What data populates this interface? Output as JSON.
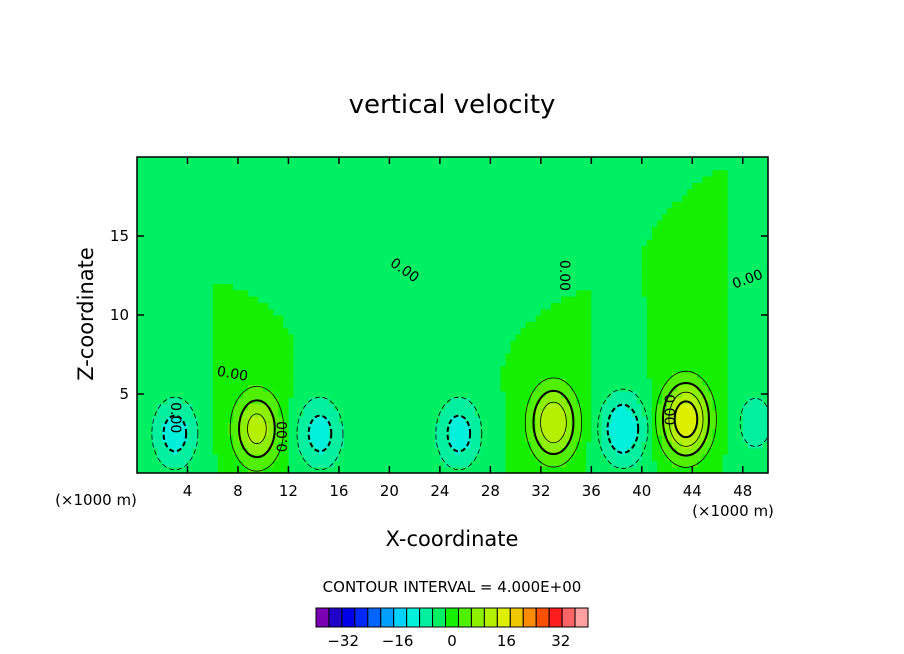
{
  "chart_data": {
    "type": "heatmap",
    "title": "vertical velocity",
    "xlabel": "X-coordinate",
    "ylabel": "Z-coordinate",
    "x_unit_left": "(×1000 m)",
    "x_unit_right": "(×1000 m)",
    "xlim": [
      0,
      50
    ],
    "ylim": [
      0,
      20
    ],
    "x_ticks": [
      4,
      8,
      12,
      16,
      20,
      24,
      28,
      32,
      36,
      40,
      44,
      48
    ],
    "y_ticks": [
      5,
      10,
      15
    ],
    "contour_interval_text": "CONTOUR INTERVAL = 4.000E+00",
    "contour_labels": [
      "0.00",
      "0.00",
      "0.00",
      "0.00",
      "0.00",
      "0.00",
      "0.00"
    ],
    "colorbar": {
      "levels": [
        -40,
        -36,
        -32,
        -28,
        -24,
        -20,
        -16,
        -12,
        -8,
        -4,
        0,
        4,
        8,
        12,
        16,
        20,
        24,
        28,
        32,
        36,
        40
      ],
      "colors": [
        "#7a00b4",
        "#1e00c8",
        "#0000e6",
        "#0028ff",
        "#0064ff",
        "#00a0ff",
        "#00d2ff",
        "#00f0dc",
        "#00f0a0",
        "#00f064",
        "#14f000",
        "#50f000",
        "#8cf000",
        "#b4f000",
        "#dcf000",
        "#f0c800",
        "#ff8c00",
        "#ff5000",
        "#ff1e1e",
        "#ff6464",
        "#ffa0a0"
      ],
      "tick_values": [
        -32,
        -16,
        0,
        16,
        32
      ],
      "tick_labels": [
        "−32",
        "−16",
        "0",
        "16",
        "32"
      ]
    },
    "extrema": [
      {
        "x": 3.0,
        "z": 2.5,
        "value": -10
      },
      {
        "x": 9.5,
        "z": 2.8,
        "value": 14
      },
      {
        "x": 14.5,
        "z": 2.5,
        "value": -10
      },
      {
        "x": 25.5,
        "z": 2.5,
        "value": -10
      },
      {
        "x": 33.0,
        "z": 3.2,
        "value": 16
      },
      {
        "x": 38.5,
        "z": 2.8,
        "value": -12
      },
      {
        "x": 43.5,
        "z": 3.4,
        "value": 20
      },
      {
        "x": 49.0,
        "z": 3.2,
        "value": -6
      }
    ]
  }
}
